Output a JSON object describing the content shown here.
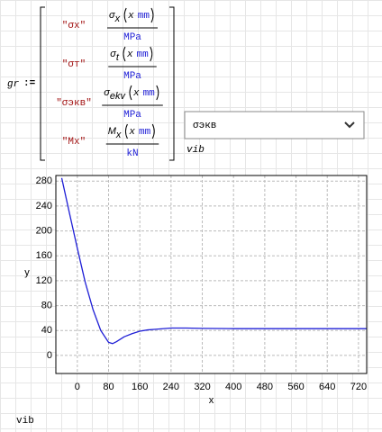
{
  "worksheet": {
    "assignment": {
      "name": "gr",
      "operator": ":="
    },
    "matrix": {
      "rows": [
        {
          "label": "\"σx\"",
          "symbol": "σ",
          "subscript": "x",
          "argument": "x",
          "unit": "mm",
          "denominator": "MPa"
        },
        {
          "label": "\"σт\"",
          "symbol": "σ",
          "subscript": "t",
          "argument": "x",
          "unit": "mm",
          "denominator": "MPa"
        },
        {
          "label": "\"σэкв\"",
          "symbol": "σ",
          "subscript": "ekv",
          "argument": "x",
          "unit": "mm",
          "denominator": "MPa"
        },
        {
          "label": "\"Mx\"",
          "symbol": "M",
          "subscript": "x",
          "argument": "x",
          "unit": "mm",
          "denominator": "kN"
        }
      ]
    },
    "dropdown": {
      "selected": "σэкв",
      "variable": "vib"
    },
    "footer": "vib"
  },
  "chart_data": {
    "type": "line",
    "xlabel": "x",
    "ylabel": "y",
    "color": "#1f1fd6",
    "x": [
      -40,
      -20,
      0,
      20,
      40,
      60,
      80,
      90,
      100,
      120,
      140,
      160,
      180,
      200,
      240,
      280,
      320,
      400,
      480,
      560,
      640,
      720,
      740
    ],
    "values": [
      285,
      228,
      172,
      118,
      74,
      40,
      21,
      19,
      22,
      30,
      35,
      39,
      41,
      42,
      44,
      44,
      43.5,
      43,
      43,
      43,
      43,
      43,
      43
    ],
    "xlim": [
      -55,
      741
    ],
    "ylim": [
      -29,
      289
    ],
    "xticks": [
      0,
      80,
      160,
      240,
      320,
      400,
      480,
      560,
      640,
      720
    ],
    "yticks": [
      0,
      40,
      80,
      120,
      160,
      200,
      240,
      280
    ],
    "grid": true
  }
}
